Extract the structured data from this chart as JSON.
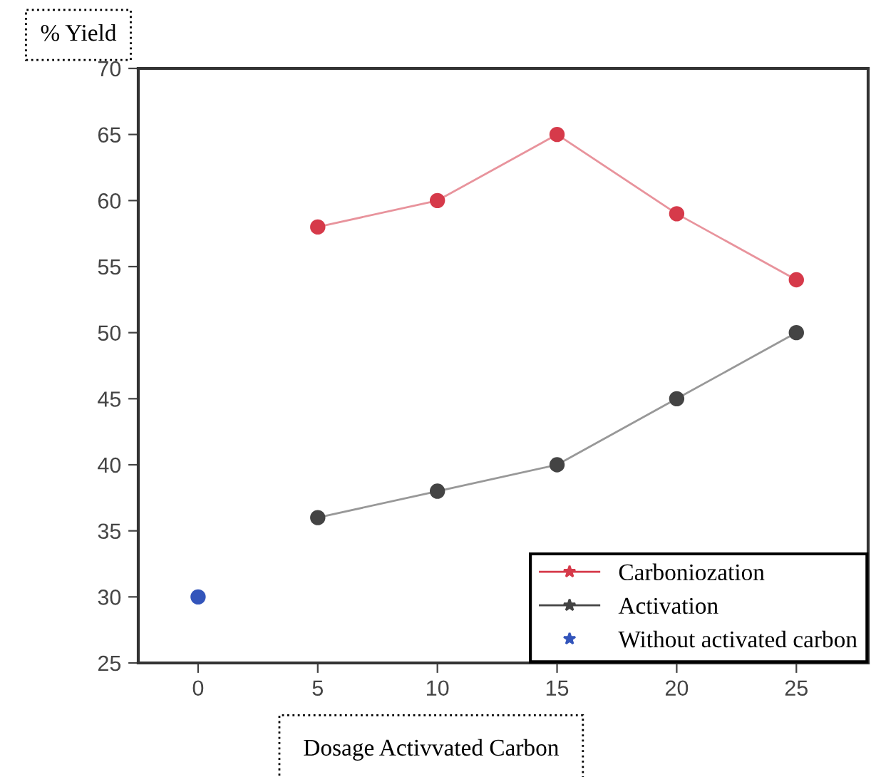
{
  "chart_data": {
    "type": "line",
    "xlabel": "Dosage Activvated Carbon",
    "ylabel": "% Yield",
    "xlim": [
      -2.5,
      28
    ],
    "ylim": [
      25,
      70
    ],
    "xticks": [
      0,
      5,
      10,
      15,
      20,
      25
    ],
    "yticks": [
      25,
      30,
      35,
      40,
      45,
      50,
      55,
      60,
      65,
      70
    ],
    "marker": "circle",
    "legend": "bottom right",
    "grid": false,
    "series": [
      {
        "name": "Carboniozation",
        "color": "#d63a4a",
        "x": [
          5,
          10,
          15,
          20,
          25
        ],
        "values": [
          58,
          60,
          65,
          59,
          54
        ]
      },
      {
        "name": "Activation",
        "color": "#444444",
        "x": [
          5,
          10,
          15,
          20,
          25
        ],
        "values": [
          36,
          38,
          40,
          45,
          50
        ]
      },
      {
        "name": "Without activated carbon",
        "type": "scatter",
        "color": "#3355bb",
        "x": [
          0
        ],
        "values": [
          30
        ]
      }
    ]
  }
}
